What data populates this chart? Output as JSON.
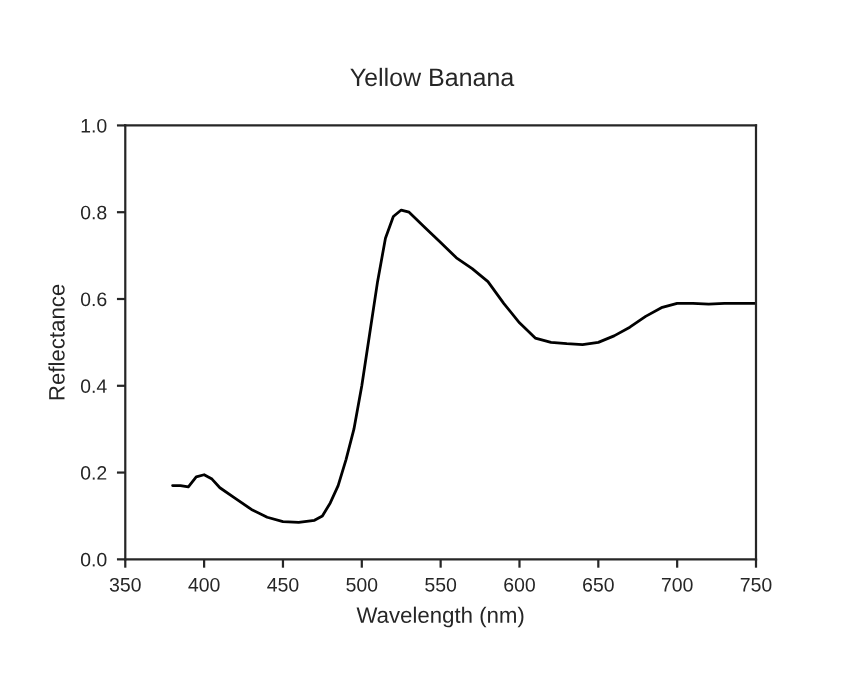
{
  "chart_data": {
    "type": "line",
    "title": "Yellow Banana",
    "xlabel": "Wavelength (nm)",
    "ylabel": "Reflectance",
    "xlim": [
      350,
      750
    ],
    "xticks": [
      350,
      400,
      450,
      500,
      550,
      600,
      650,
      700,
      750
    ],
    "ylim": [
      0.0,
      1.0
    ],
    "yticks": [
      {
        "value": 0,
        "label": "0.0"
      },
      0.2,
      0.4,
      0.6,
      0.8,
      {
        "value": 1,
        "label": "1.0"
      }
    ],
    "grid": false,
    "legend": false,
    "series": [
      {
        "color": "#000000",
        "x": [
          380,
          385,
          390,
          395,
          400,
          405,
          410,
          420,
          430,
          440,
          450,
          460,
          470,
          475,
          480,
          485,
          490,
          495,
          500,
          505,
          510,
          515,
          520,
          525,
          530,
          540,
          550,
          560,
          570,
          580,
          590,
          600,
          610,
          620,
          630,
          640,
          650,
          660,
          670,
          680,
          690,
          700,
          710,
          720,
          730,
          740,
          750
        ],
        "values": [
          0.17,
          0.17,
          0.167,
          0.19,
          0.195,
          0.185,
          0.165,
          0.14,
          0.115,
          0.097,
          0.087,
          0.085,
          0.09,
          0.1,
          0.13,
          0.17,
          0.23,
          0.3,
          0.4,
          0.52,
          0.64,
          0.74,
          0.79,
          0.805,
          0.8,
          0.765,
          0.73,
          0.695,
          0.67,
          0.64,
          0.59,
          0.545,
          0.51,
          0.5,
          0.497,
          0.495,
          0.5,
          0.515,
          0.535,
          0.56,
          0.58,
          0.59,
          0.59,
          0.588,
          0.59,
          0.59,
          0.59
        ]
      }
    ]
  }
}
